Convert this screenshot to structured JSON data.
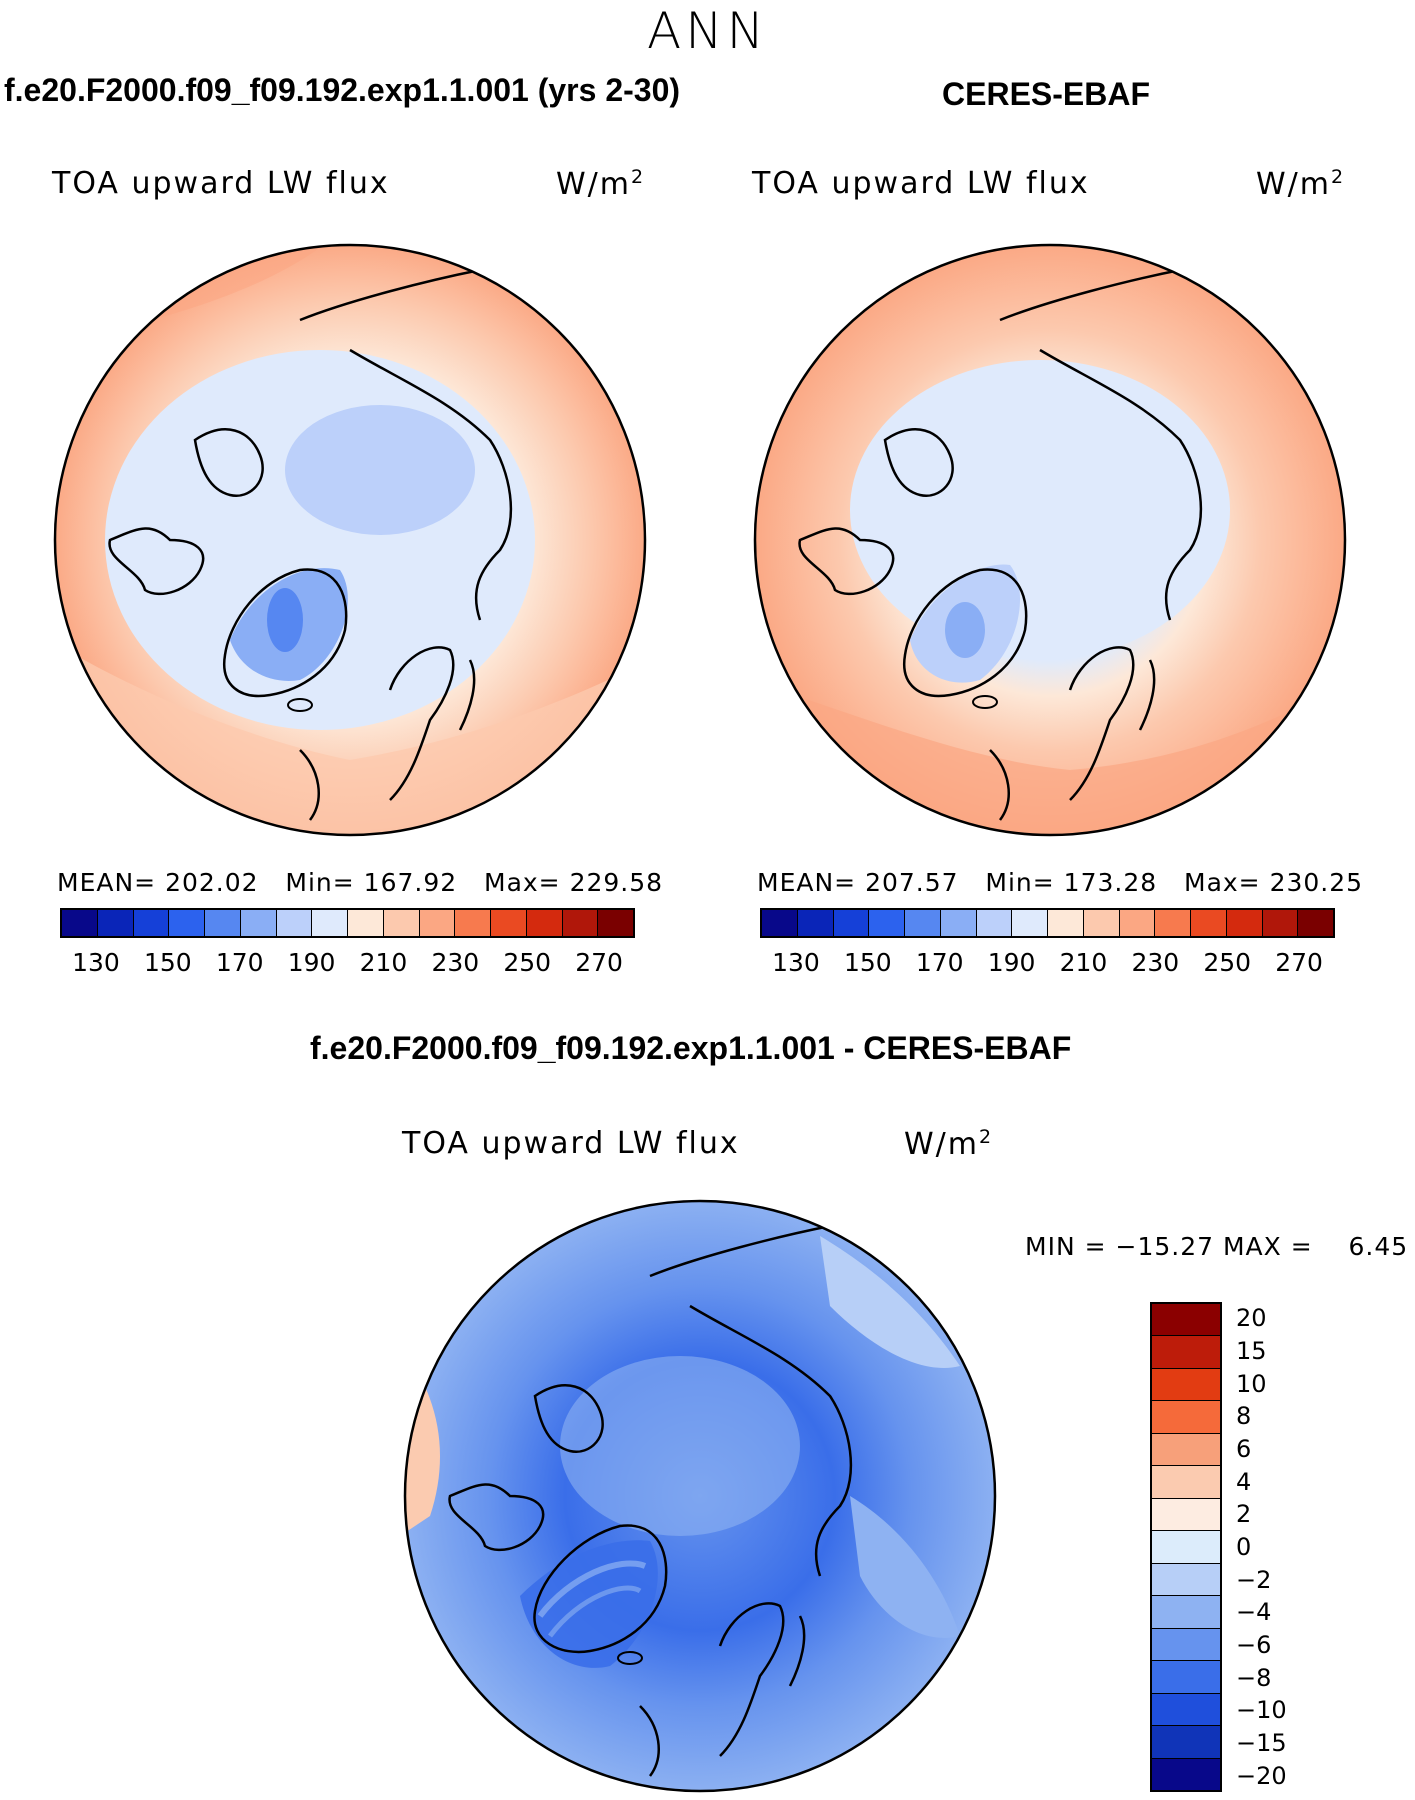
{
  "season": "ANN",
  "panels": {
    "model": {
      "header": "f.e20.F2000.f09_f09.192.exp1.1.001 (yrs 2-30)",
      "variable": "TOA upward LW flux",
      "units": "W/m",
      "units_exp": "2",
      "stats": {
        "mean_label": "MEAN=",
        "mean": "202.02",
        "min_label": "Min=",
        "min": "167.92",
        "max_label": "Max=",
        "max": "229.58"
      }
    },
    "obs": {
      "header": "CERES-EBAF",
      "variable": "TOA upward LW flux",
      "units": "W/m",
      "units_exp": "2",
      "stats": {
        "mean_label": "MEAN=",
        "mean": "207.57",
        "min_label": "Min=",
        "min": "173.28",
        "max_label": "Max=",
        "max": "230.25"
      }
    },
    "diff": {
      "header": "f.e20.F2000.f09_f09.192.exp1.1.001 - CERES-EBAF",
      "variable": "TOA upward LW flux",
      "units": "W/m",
      "units_exp": "2",
      "stats": {
        "min_label": "MIN =",
        "min": "−15.27",
        "max_label": "MAX =",
        "max": "6.45"
      }
    }
  },
  "colorbars": {
    "main": {
      "colors": [
        "#08088a",
        "#0a25b8",
        "#1540d8",
        "#2c62ee",
        "#5687f1",
        "#8aaef5",
        "#bcd0fa",
        "#dfeafc",
        "#fde8d8",
        "#fcc9ae",
        "#fba783",
        "#f77a4e",
        "#ea4a22",
        "#d42a0e",
        "#b0170a",
        "#7a0000"
      ],
      "ticks": [
        "130",
        "150",
        "170",
        "190",
        "210",
        "230",
        "250",
        "270"
      ]
    },
    "diff": {
      "colors": [
        "#8b0000",
        "#bd1c0a",
        "#e23c12",
        "#f56a3a",
        "#f7a07a",
        "#fbcbb0",
        "#fdece1",
        "#dcecfb",
        "#b7cff7",
        "#8eb2f2",
        "#6693ee",
        "#3a6ee9",
        "#1f4fdc",
        "#1034b8",
        "#08088a"
      ],
      "ticks": [
        "20",
        "15",
        "10",
        "8",
        "6",
        "4",
        "2",
        "0",
        "−2",
        "−4",
        "−6",
        "−8",
        "−10",
        "−15",
        "−20"
      ]
    }
  },
  "chart_data": [
    {
      "type": "heatmap",
      "title": "f.e20.F2000.f09_f09.192.exp1.1.001 (yrs 2-30)",
      "variable": "TOA upward LW flux",
      "units": "W/m2",
      "projection": "north polar stereographic",
      "mean": 202.02,
      "min": 167.92,
      "max": 229.58,
      "levels": [
        130,
        140,
        150,
        160,
        170,
        180,
        190,
        200,
        210,
        220,
        230,
        240,
        250,
        260,
        270
      ]
    },
    {
      "type": "heatmap",
      "title": "CERES-EBAF",
      "variable": "TOA upward LW flux",
      "units": "W/m2",
      "projection": "north polar stereographic",
      "mean": 207.57,
      "min": 173.28,
      "max": 230.25,
      "levels": [
        130,
        140,
        150,
        160,
        170,
        180,
        190,
        200,
        210,
        220,
        230,
        240,
        250,
        260,
        270
      ]
    },
    {
      "type": "heatmap",
      "title": "f.e20.F2000.f09_f09.192.exp1.1.001 - CERES-EBAF",
      "variable": "TOA upward LW flux",
      "units": "W/m2",
      "projection": "north polar stereographic",
      "min": -15.27,
      "max": 6.45,
      "levels": [
        -20,
        -15,
        -10,
        -8,
        -6,
        -4,
        -2,
        0,
        2,
        4,
        6,
        8,
        10,
        15,
        20
      ]
    }
  ]
}
